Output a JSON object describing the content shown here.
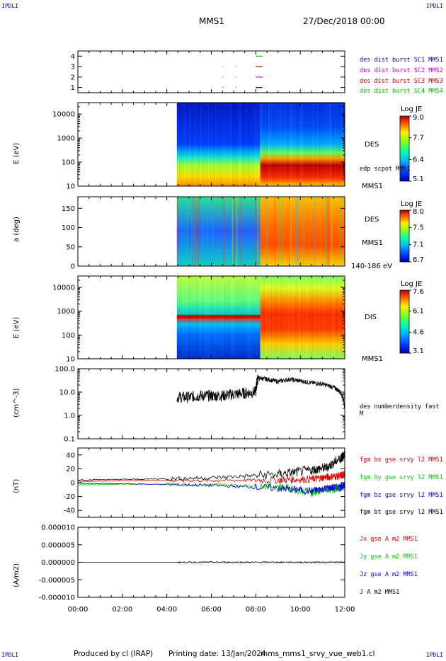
{
  "header": {
    "corner_tl": "IPDLI",
    "corner_tr": "IPDLI",
    "corner_bl": "IPDLI",
    "corner_br": "IPDLI",
    "title": "MMS1",
    "date": "27/Dec/2018 00:00"
  },
  "footer": {
    "produced_by": "Produced by cl (IRAP)",
    "printing_date": "Printing date: 13/Jan/2024",
    "file": "mms_mms1_srvy_vue_web1.cl"
  },
  "colors": {
    "burst1": "#0000cc",
    "burst2": "#cc00cc",
    "burst3": "#cc0000",
    "burst4": "#00bb00",
    "bx": "#dd0000",
    "by": "#00cc00",
    "bz": "#0000dd",
    "bt": "#000000"
  },
  "chart_data": [
    {
      "type": "scatter",
      "name": "burst",
      "ylim": [
        0.5,
        4.5
      ],
      "yticks": [
        "1",
        "2",
        "3",
        "4"
      ],
      "legend": [
        "des dist burst SC1 MMS1",
        "des dist burst SC2 MMS2",
        "des dist burst SC3 MMS3",
        "des dist burst SC4 MMS4"
      ],
      "segments": [
        {
          "level": 4,
          "x": [
            8.0,
            8.3
          ],
          "color": "burst4"
        },
        {
          "level": 3,
          "x": [
            8.0,
            8.3
          ],
          "color": "burst3"
        },
        {
          "level": 2,
          "x": [
            8.0,
            8.3
          ],
          "color": "burst2"
        },
        {
          "level": 1,
          "x": [
            8.0,
            8.3
          ],
          "color": "burst1"
        }
      ],
      "dots_x": [
        6.5,
        7.1
      ]
    },
    {
      "type": "heatmap",
      "name": "des-energy",
      "ylabel": "E (eV)",
      "yscale": "log",
      "ylim": [
        10,
        30000
      ],
      "yticks": [
        "10",
        "100",
        "1000",
        "10000"
      ],
      "right_label": "DES",
      "sub_label": "edp scpot MMS1",
      "below_label": "MMS1",
      "colorbar": {
        "title": "Log JE",
        "ticks": [
          "9.0",
          "7.7",
          "6.4",
          "5.1"
        ]
      },
      "data_start": 4.45
    },
    {
      "type": "heatmap",
      "name": "des-pitch",
      "ylabel": "a (deg)",
      "ylim": [
        0,
        180
      ],
      "yticks": [
        "0",
        "50",
        "100",
        "150"
      ],
      "right_label": "DES",
      "below_label": "MMS1",
      "energy_range": "140-186 eV",
      "colorbar": {
        "title": "Log JE",
        "ticks": [
          "8.0",
          "7.5",
          "7.1",
          "6.7"
        ]
      },
      "data_start": 4.45
    },
    {
      "type": "heatmap",
      "name": "dis-energy",
      "ylabel": "E (eV)",
      "yscale": "log",
      "ylim": [
        10,
        30000
      ],
      "yticks": [
        "10",
        "100",
        "1000",
        "10000"
      ],
      "right_label": "DIS",
      "below_label": "MMS1",
      "colorbar": {
        "title": "Log JE",
        "ticks": [
          "7.6",
          "6.1",
          "4.6",
          "3.1"
        ]
      },
      "data_start": 4.45
    },
    {
      "type": "line",
      "name": "density",
      "ylabel": "(cm^-3)",
      "yscale": "log",
      "ylim": [
        0.1,
        100
      ],
      "yticks": [
        "0.1",
        "1.0",
        "10.0",
        "100.0"
      ],
      "series": [
        {
          "name": "des numberdensity fast M",
          "x": [
            4.45,
            5.0,
            5.5,
            6.0,
            6.5,
            7.0,
            7.5,
            8.0,
            8.1,
            8.5,
            9.0,
            9.5,
            10.0,
            10.5,
            11.0,
            11.5,
            11.8,
            12.0
          ],
          "y": [
            6,
            6,
            7,
            7,
            7,
            8,
            9,
            10,
            40,
            35,
            28,
            35,
            30,
            25,
            22,
            16,
            10,
            2
          ]
        }
      ]
    },
    {
      "type": "line",
      "name": "magnetic-field",
      "ylabel": "(nT)",
      "ylim": [
        -50,
        50
      ],
      "yticks": [
        "-40",
        "-20",
        "0",
        "20",
        "40"
      ],
      "series": [
        {
          "name": "fgm bx gse srvy l2 MMS1",
          "color": "bx",
          "x": [
            0,
            3,
            6,
            9,
            10.5,
            11.2,
            11.8,
            12.0
          ],
          "y": [
            2,
            3,
            3,
            4,
            5,
            8,
            10,
            12
          ]
        },
        {
          "name": "fgm by gse srvy l2 MMS1",
          "color": "by",
          "x": [
            0,
            3,
            6,
            9,
            10.5,
            11.2,
            11.8,
            12.0
          ],
          "y": [
            -3,
            -2,
            -3,
            -5,
            -15,
            -10,
            -8,
            -3
          ]
        },
        {
          "name": "fgm bz gse srvy l2 MMS1",
          "color": "bz",
          "x": [
            0,
            3,
            6,
            9,
            10.5,
            11.2,
            11.8,
            12.0
          ],
          "y": [
            -1,
            -2,
            -4,
            -8,
            -12,
            -8,
            -6,
            -4
          ]
        },
        {
          "name": "fgm bt gse srvy l2 MMS1",
          "color": "bt",
          "x": [
            0,
            3,
            6,
            9,
            10.5,
            11.2,
            11.8,
            12.0
          ],
          "y": [
            4,
            5,
            7,
            12,
            18,
            22,
            35,
            40
          ]
        }
      ]
    },
    {
      "type": "line",
      "name": "current",
      "ylabel": "(A/m2)",
      "ylim": [
        -1e-05,
        1e-05
      ],
      "yticks": [
        "-0.000010",
        "-0.000005",
        "0.000000",
        "0.000005",
        "0.000010"
      ],
      "series": [
        {
          "name": "Jx gse A m2 MMS1",
          "color": "bx"
        },
        {
          "name": "Jy gse A m2 MMS1",
          "color": "by"
        },
        {
          "name": "Jz gse A m2 MMS1",
          "color": "bz"
        },
        {
          "name": "J A m2 MMS1",
          "color": "bt"
        }
      ]
    }
  ],
  "xaxis": {
    "xlim": [
      0,
      12
    ],
    "ticks": [
      "00:00",
      "02:00",
      "04:00",
      "06:00",
      "08:00",
      "10:00",
      "12:00"
    ]
  }
}
